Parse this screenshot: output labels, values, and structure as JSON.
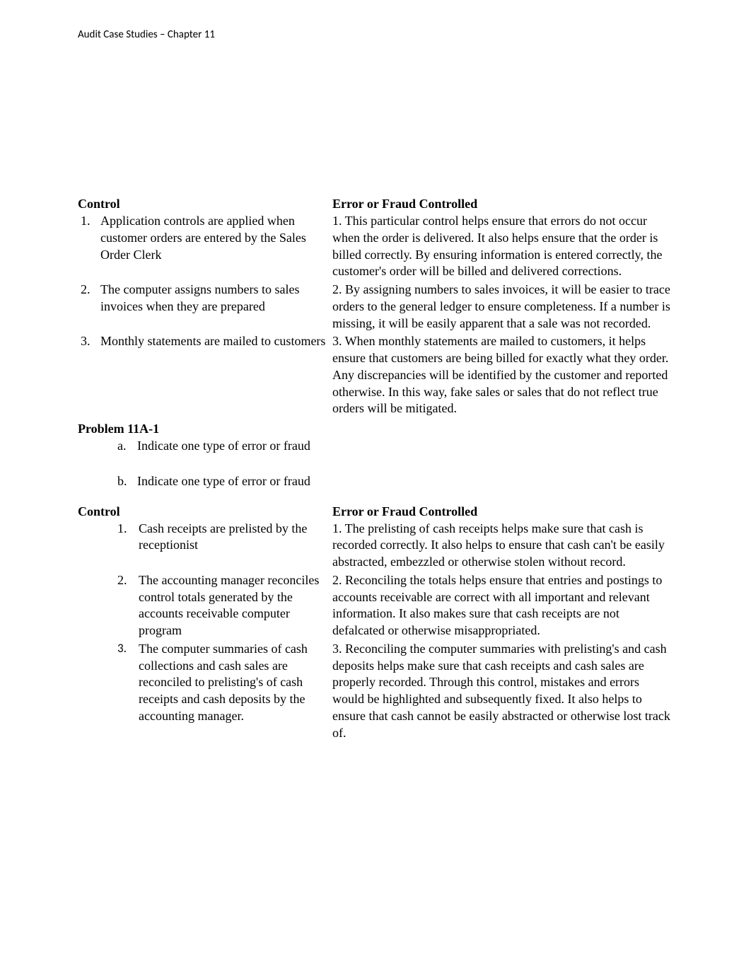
{
  "header": {
    "text": "Audit Case Studies – Chapter 11"
  },
  "table1": {
    "header_left": "Control",
    "header_right": "Error or Fraud Controlled",
    "rows": [
      {
        "num": "1.",
        "control": "Application controls are applied when customer orders are entered by the Sales Order Clerk",
        "error": "1. This particular control helps ensure that errors do not occur when the order is delivered. It also helps ensure that the order is billed correctly. By ensuring information is entered correctly, the customer's order will be billed and delivered corrections."
      },
      {
        "num": "2.",
        "control": "The computer assigns numbers to sales invoices when they are prepared",
        "error": "2.  By assigning numbers to sales invoices, it will be easier to trace orders to the general ledger to ensure completeness. If a number is missing, it will be easily apparent that a sale was not recorded."
      },
      {
        "num": "3.",
        "control": "Monthly statements are mailed to customers",
        "error": "3. When monthly statements are mailed to customers, it helps ensure that customers are being billed for exactly what they order. Any discrepancies will be identified by the customer and reported otherwise. In this way, fake sales or sales that do not reflect true orders will be mitigated."
      }
    ]
  },
  "problem": {
    "heading": "Problem 11A-1",
    "sub_a_letter": "a.",
    "sub_a_text": "Indicate one type of error or fraud",
    "sub_b_letter": "b.",
    "sub_b_text": "Indicate one type of error or fraud"
  },
  "table2": {
    "header_left": "Control",
    "header_right": "Error or Fraud Controlled",
    "rows": [
      {
        "num": "1.",
        "control": "Cash receipts are prelisted by the receptionist",
        "error": "1.  The prelisting of cash receipts helps make sure that cash is recorded correctly. It also helps to ensure that cash can't be easily abstracted, embezzled or otherwise stolen without record."
      },
      {
        "num": "2.",
        "control": "The accounting manager reconciles control totals generated by the accounts receivable computer program",
        "error": "2.  Reconciling the totals helps ensure that entries and postings to accounts receivable are correct with all important and relevant information. It also makes sure that cash receipts are not defalcated or otherwise misappropriated."
      },
      {
        "num": "3.",
        "control": "The computer summaries of cash collections and cash sales are reconciled to prelisting's of cash receipts and cash deposits by the accounting manager.",
        "error": "3.  Reconciling the computer summaries with prelisting's and cash deposits helps make sure that cash receipts and cash sales are properly recorded. Through this control, mistakes and errors would be highlighted and subsequently fixed. It also helps to ensure that cash cannot be easily abstracted or otherwise lost track of."
      }
    ]
  }
}
